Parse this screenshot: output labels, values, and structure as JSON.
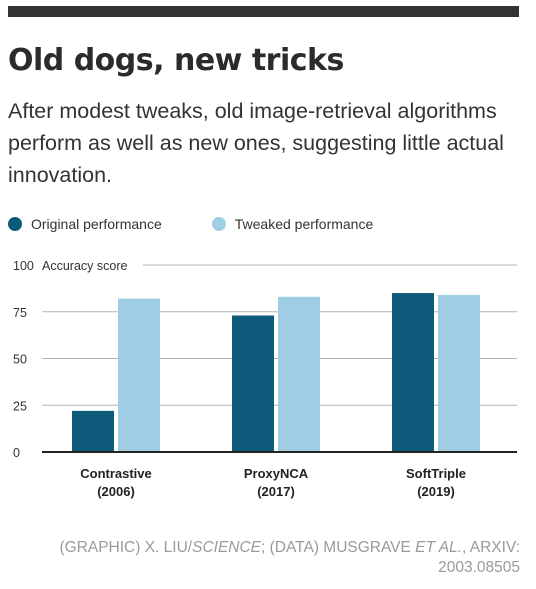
{
  "header": {
    "title": "Old dogs, new tricks",
    "subtitle": "After modest tweaks, old image-retrieval algorithms perform as well as new ones, suggesting little actual innovation."
  },
  "legend": [
    {
      "label": "Original performance",
      "color": "#0e5a7a"
    },
    {
      "label": "Tweaked performance",
      "color": "#9fcde3"
    }
  ],
  "credit": {
    "prefix": "(GRAPHIC) X. LIU/",
    "science": "SCIENCE",
    "middle": "; (DATA) MUSGRAVE ",
    "etal": "ET AL.",
    "suffix": ", ARXIV: 2003.08505"
  },
  "chart_data": {
    "type": "bar",
    "categories": [
      [
        "Contrastive",
        "(2006)"
      ],
      [
        "ProxyNCA",
        "(2017)"
      ],
      [
        "SoftTriple",
        "(2019)"
      ]
    ],
    "series": [
      {
        "name": "Original performance",
        "values": [
          22,
          73,
          85
        ],
        "color": "#0e5a7a"
      },
      {
        "name": "Tweaked performance",
        "values": [
          82,
          83,
          84
        ],
        "color": "#9fcde3"
      }
    ],
    "ylabel": "Accuracy score",
    "yticks": [
      0,
      25,
      50,
      75,
      100
    ],
    "ylim": [
      0,
      100
    ],
    "grid": true,
    "legend_position": "top-left"
  }
}
